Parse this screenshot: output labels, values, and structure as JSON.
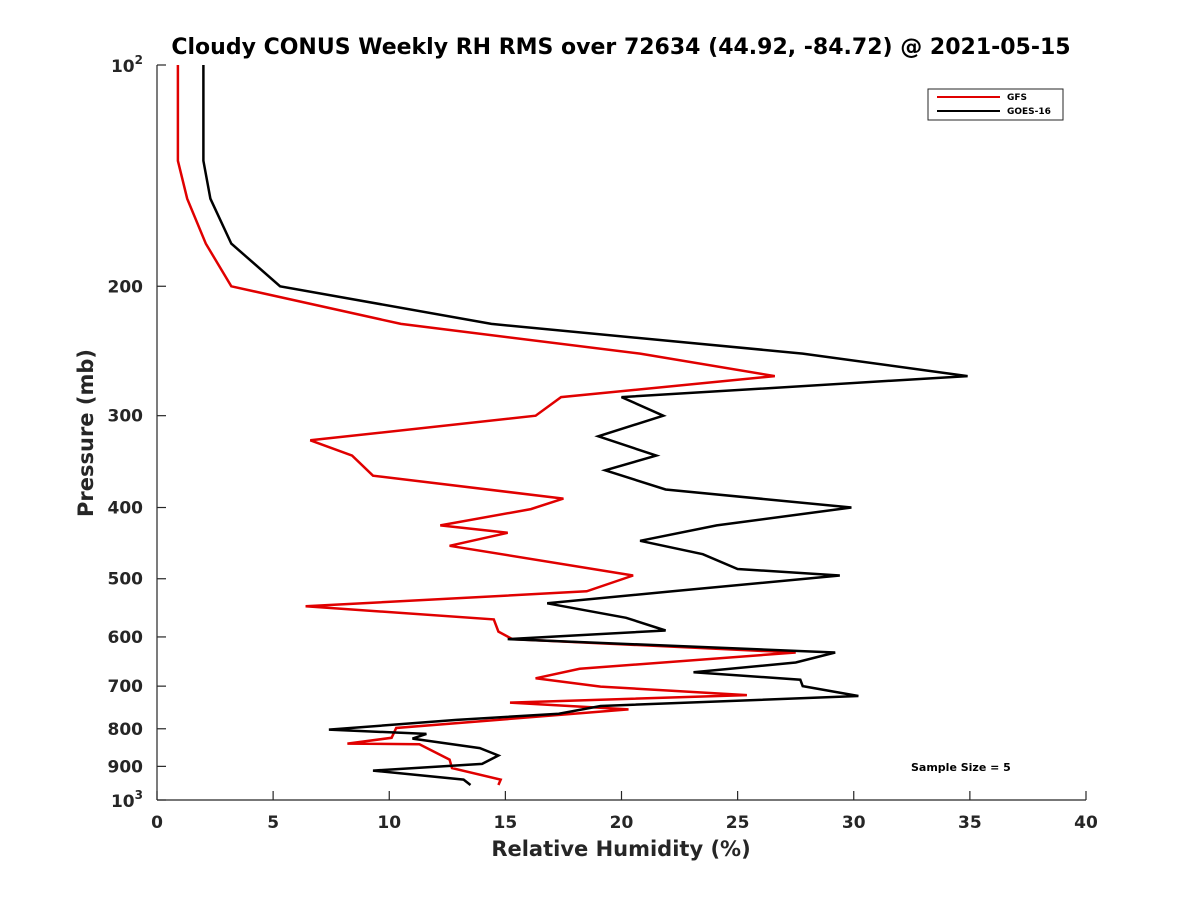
{
  "chart_data": {
    "type": "line",
    "title": "Cloudy CONUS Weekly RH RMS over 72634 (44.92, -84.72) @ 2021-05-15",
    "xlabel": "Relative Humidity (%)",
    "ylabel": "Pressure (mb)",
    "xlim": [
      0,
      40
    ],
    "ylim": [
      100,
      1000
    ],
    "y_scale": "log",
    "y_reversed": true,
    "x_ticks": [
      "0",
      "5",
      "10",
      "15",
      "20",
      "25",
      "30",
      "35",
      "40"
    ],
    "y_ticks": [
      {
        "value": 100,
        "base": "10",
        "exp": "2"
      },
      {
        "value": 200,
        "label": "200"
      },
      {
        "value": 300,
        "label": "300"
      },
      {
        "value": 400,
        "label": "400"
      },
      {
        "value": 500,
        "label": "500"
      },
      {
        "value": 600,
        "label": "600"
      },
      {
        "value": 700,
        "label": "700"
      },
      {
        "value": 800,
        "label": "800"
      },
      {
        "value": 900,
        "label": "900"
      },
      {
        "value": 1000,
        "base": "10",
        "exp": "3"
      }
    ],
    "grid": false,
    "legend_position": "top-right",
    "annotation": "Sample Size = 5",
    "series": [
      {
        "name": "GFS",
        "color": "#e00000",
        "points": [
          [
            0.9,
            100
          ],
          [
            0.9,
            135
          ],
          [
            1.3,
            152
          ],
          [
            2.1,
            175
          ],
          [
            3.2,
            200
          ],
          [
            10.5,
            225
          ],
          [
            20.8,
            247
          ],
          [
            26.6,
            265
          ],
          [
            17.4,
            283
          ],
          [
            16.3,
            300
          ],
          [
            6.6,
            324
          ],
          [
            8.4,
            340
          ],
          [
            9.3,
            362
          ],
          [
            17.5,
            389
          ],
          [
            16.1,
            402
          ],
          [
            12.2,
            423
          ],
          [
            15.1,
            433
          ],
          [
            12.6,
            451
          ],
          [
            20.5,
            495
          ],
          [
            18.5,
            520
          ],
          [
            6.4,
            545
          ],
          [
            14.5,
            568
          ],
          [
            14.7,
            590
          ],
          [
            15.3,
            604
          ],
          [
            27.5,
            630
          ],
          [
            18.2,
            663
          ],
          [
            16.3,
            683
          ],
          [
            19.1,
            701
          ],
          [
            25.4,
            720
          ],
          [
            15.2,
            737
          ],
          [
            20.3,
            753
          ],
          [
            10.3,
            798
          ],
          [
            10.1,
            823
          ],
          [
            8.2,
            838
          ],
          [
            11.3,
            840
          ],
          [
            12.6,
            881
          ],
          [
            12.7,
            905
          ],
          [
            14.8,
            938
          ],
          [
            14.7,
            954
          ]
        ]
      },
      {
        "name": "GOES-16",
        "color": "#000000",
        "points": [
          [
            2.0,
            100
          ],
          [
            2.0,
            135
          ],
          [
            2.3,
            152
          ],
          [
            3.2,
            175
          ],
          [
            5.3,
            200
          ],
          [
            14.4,
            225
          ],
          [
            27.8,
            247
          ],
          [
            34.9,
            265
          ],
          [
            20.0,
            283
          ],
          [
            21.8,
            300
          ],
          [
            19.0,
            320
          ],
          [
            21.5,
            340
          ],
          [
            19.3,
            356
          ],
          [
            21.9,
            378
          ],
          [
            29.9,
            400
          ],
          [
            24.1,
            423
          ],
          [
            20.8,
            444
          ],
          [
            23.5,
            463
          ],
          [
            25.0,
            485
          ],
          [
            29.4,
            495
          ],
          [
            22.2,
            520
          ],
          [
            16.8,
            540
          ],
          [
            20.2,
            565
          ],
          [
            21.9,
            588
          ],
          [
            15.1,
            604
          ],
          [
            29.2,
            630
          ],
          [
            27.5,
            650
          ],
          [
            23.1,
            670
          ],
          [
            27.7,
            686
          ],
          [
            27.8,
            700
          ],
          [
            30.2,
            722
          ],
          [
            19.1,
            745
          ],
          [
            17.3,
            763
          ],
          [
            12.9,
            778
          ],
          [
            7.4,
            802
          ],
          [
            11.6,
            813
          ],
          [
            11.0,
            825
          ],
          [
            13.9,
            850
          ],
          [
            14.7,
            870
          ],
          [
            14.0,
            893
          ],
          [
            9.3,
            912
          ],
          [
            13.2,
            938
          ],
          [
            13.5,
            954
          ]
        ]
      }
    ]
  }
}
